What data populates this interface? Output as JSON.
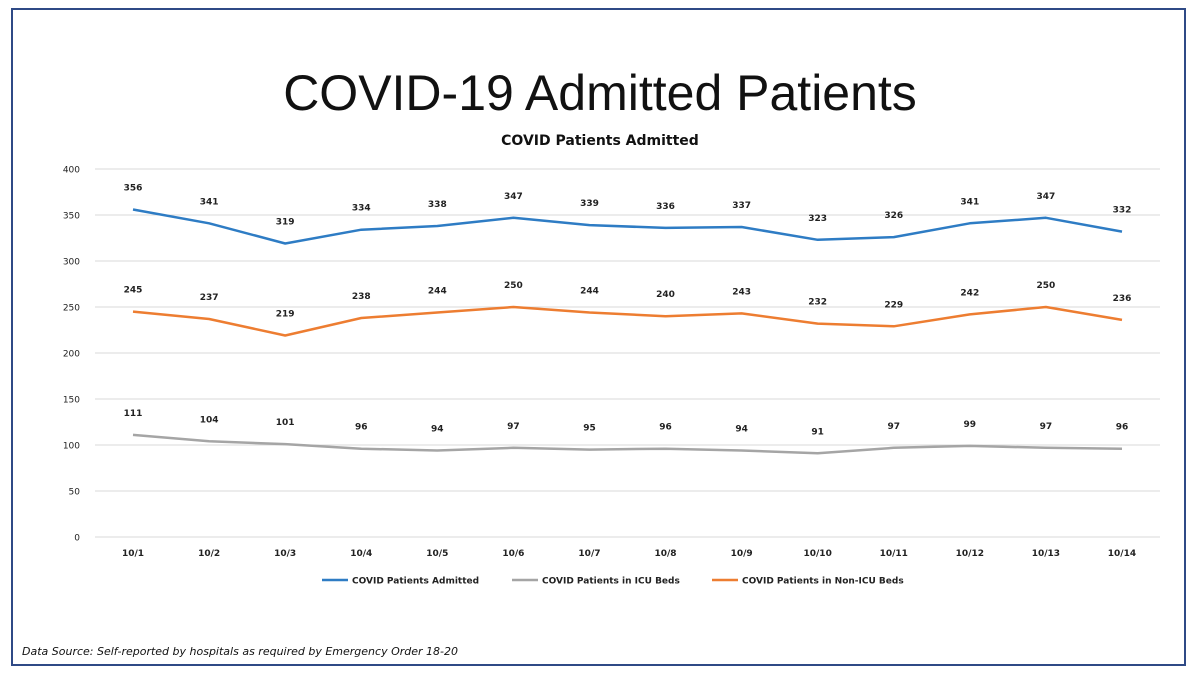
{
  "page": {
    "title": "COVID-19 Admitted Patients",
    "source": "Data Source: Self-reported by hospitals as required by Emergency Order 18-20"
  },
  "chart_data": {
    "type": "line",
    "title": "COVID Patients Admitted",
    "xlabel": "",
    "ylabel": "",
    "ylim": [
      0,
      400
    ],
    "yticks": [
      0,
      50,
      100,
      150,
      200,
      250,
      300,
      350,
      400
    ],
    "categories": [
      "10/1",
      "10/2",
      "10/3",
      "10/4",
      "10/5",
      "10/6",
      "10/7",
      "10/8",
      "10/9",
      "10/10",
      "10/11",
      "10/12",
      "10/13",
      "10/14"
    ],
    "grid": true,
    "legend_position": "bottom",
    "series": [
      {
        "name": "COVID Patients Admitted",
        "color": "#2e7cc4",
        "values": [
          356,
          341,
          319,
          334,
          338,
          347,
          339,
          336,
          337,
          323,
          326,
          341,
          347,
          332
        ]
      },
      {
        "name": "COVID Patients in ICU Beds",
        "color": "#a5a5a5",
        "values": [
          111,
          104,
          101,
          96,
          94,
          97,
          95,
          96,
          94,
          91,
          97,
          99,
          97,
          96
        ]
      },
      {
        "name": "COVID Patients in Non-ICU Beds",
        "color": "#ed7d31",
        "values": [
          245,
          237,
          219,
          238,
          244,
          250,
          244,
          240,
          243,
          232,
          229,
          242,
          250,
          236
        ]
      }
    ]
  }
}
